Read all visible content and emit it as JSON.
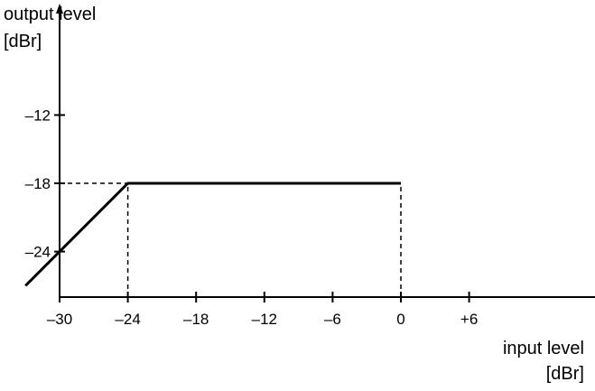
{
  "chart_data": {
    "type": "line",
    "title": "",
    "ylabel": [
      "output level",
      "[dBr]"
    ],
    "xlabel": [
      "input level",
      "[dBr]"
    ],
    "xlim": [
      -33,
      18
    ],
    "ylim": [
      -29,
      -3
    ],
    "x_ticks": [
      -30,
      -24,
      -18,
      -12,
      -6,
      0,
      6
    ],
    "x_tick_labels": [
      "–30",
      "–24",
      "–18",
      "–12",
      "–6",
      "0",
      "+6"
    ],
    "y_ticks": [
      -12,
      -18,
      -24
    ],
    "y_tick_labels": [
      "–12",
      "–18",
      "–24"
    ],
    "grid": false,
    "series": [
      {
        "x": [
          -33,
          -24,
          0
        ],
        "y": [
          -27,
          -18,
          -18
        ]
      }
    ],
    "guides": [
      {
        "x": [
          -30,
          -24
        ],
        "y": [
          -18,
          -18
        ]
      },
      {
        "x": [
          -24,
          -24
        ],
        "y": [
          -28,
          -18
        ]
      },
      {
        "x": [
          0,
          0
        ],
        "y": [
          -28,
          -18
        ]
      }
    ]
  }
}
